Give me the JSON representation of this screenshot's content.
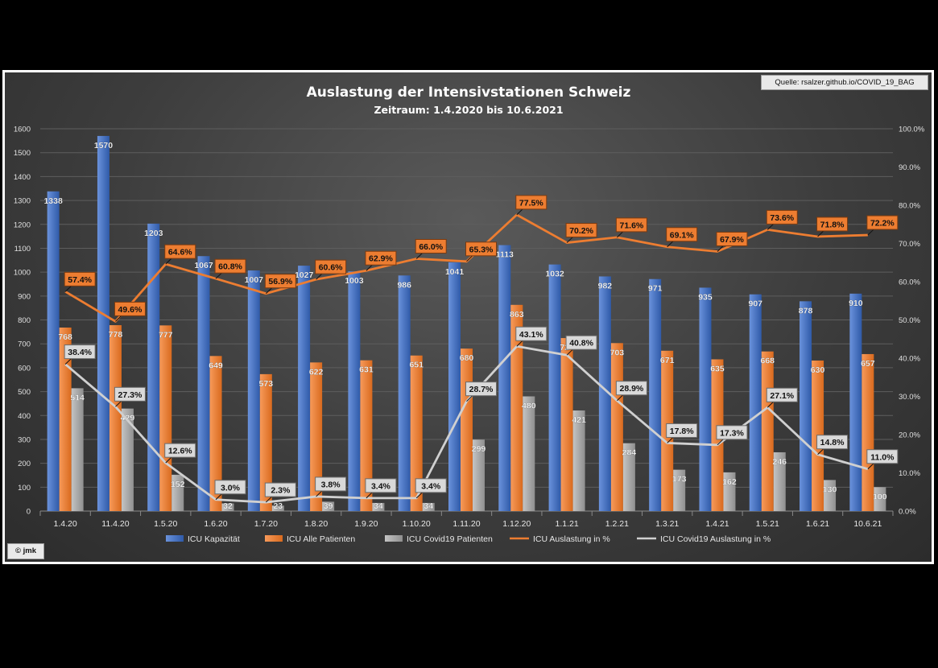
{
  "chart_data": {
    "type": "bar",
    "title": "Auslastung der Intensivstationen Schweiz",
    "subtitle": "Zeitraum: 1.4.2020 bis 10.6.2021",
    "categories": [
      "1.4.20",
      "11.4.20",
      "1.5.20",
      "1.6.20",
      "1.7.20",
      "1.8.20",
      "1.9.20",
      "1.10.20",
      "1.11.20",
      "1.12.20",
      "1.1.21",
      "1.2.21",
      "1.3.21",
      "1.4.21",
      "1.5.21",
      "1.6.21",
      "10.6.21"
    ],
    "series": [
      {
        "name": "ICU Kapazität",
        "type": "bar",
        "axis": "left",
        "color": "#4472c4",
        "values": [
          1338,
          1570,
          1203,
          1067,
          1007,
          1027,
          1003,
          986,
          1041,
          1113,
          1032,
          982,
          971,
          935,
          907,
          878,
          910
        ]
      },
      {
        "name": "ICU Alle Patienten",
        "type": "bar",
        "axis": "left",
        "color": "#ed7d31",
        "values": [
          768,
          778,
          777,
          649,
          573,
          622,
          631,
          651,
          680,
          863,
          724,
          703,
          671,
          635,
          668,
          630,
          657
        ]
      },
      {
        "name": "ICU Covid19 Patienten",
        "type": "bar",
        "axis": "left",
        "color": "#a5a5a5",
        "values": [
          514,
          429,
          152,
          32,
          23,
          39,
          34,
          34,
          299,
          480,
          421,
          284,
          173,
          162,
          246,
          130,
          100
        ]
      },
      {
        "name": "ICU Auslastung in %",
        "type": "line",
        "axis": "right",
        "color": "#ed7d31",
        "values": [
          57.4,
          49.6,
          64.6,
          60.8,
          56.9,
          60.6,
          62.9,
          66.0,
          65.3,
          77.5,
          70.2,
          71.6,
          69.1,
          67.9,
          73.6,
          71.8,
          72.2
        ]
      },
      {
        "name": "ICU Covid19 Auslastung in %",
        "type": "line",
        "axis": "right",
        "color": "#d0d0d0",
        "values": [
          38.4,
          27.3,
          12.6,
          3.0,
          2.3,
          3.8,
          3.4,
          3.4,
          28.7,
          43.1,
          40.8,
          28.9,
          17.8,
          17.3,
          27.1,
          14.8,
          11.0
        ]
      }
    ],
    "ylim": [
      0,
      1600
    ],
    "yticks": [
      0,
      100,
      200,
      300,
      400,
      500,
      600,
      700,
      800,
      900,
      1000,
      1100,
      1200,
      1300,
      1400,
      1500,
      1600
    ],
    "y2lim": [
      0,
      100
    ],
    "y2ticks": [
      "0.0%",
      "10.0%",
      "20.0%",
      "30.0%",
      "40.0%",
      "50.0%",
      "60.0%",
      "70.0%",
      "80.0%",
      "90.0%",
      "100.0%"
    ],
    "grid": true,
    "legend": "bottom"
  },
  "source": "Quelle: rsalzer.github.io/COVID_19_BAG",
  "credit": "© jmk"
}
